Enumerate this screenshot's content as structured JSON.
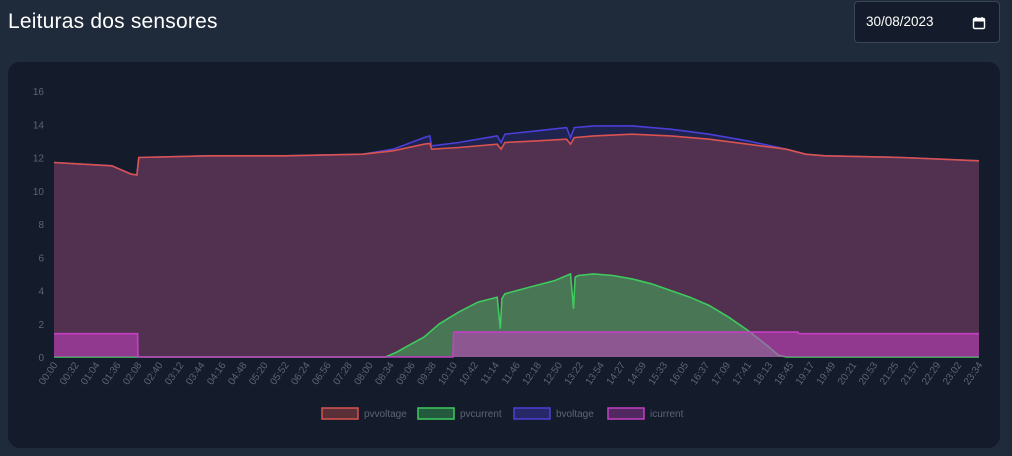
{
  "header": {
    "title": "Leituras dos sensores",
    "date_value": "30/08/2023"
  },
  "colors": {
    "pvvoltage": "#d9534f",
    "pvcurrent": "#3ecb5e",
    "bvoltage": "#4b3fd8",
    "icurrent": "#c43fc4"
  },
  "chart_data": {
    "type": "area",
    "ylim": [
      0,
      16
    ],
    "yticks": [
      0,
      2,
      4,
      6,
      8,
      10,
      12,
      14,
      16
    ],
    "grid": false,
    "legend_position": "bottom",
    "x_categories": [
      "00:00",
      "00:32",
      "01:04",
      "01:36",
      "02:08",
      "02:40",
      "03:12",
      "03:44",
      "04:16",
      "04:48",
      "05:20",
      "05:52",
      "06:24",
      "06:56",
      "07:28",
      "08:00",
      "08:34",
      "09:06",
      "09:38",
      "10:10",
      "10:42",
      "11:14",
      "11:46",
      "12:18",
      "12:50",
      "13:22",
      "13:54",
      "14:27",
      "14:59",
      "15:33",
      "16:05",
      "16:37",
      "17:09",
      "17:41",
      "18:13",
      "18:45",
      "19:17",
      "19:49",
      "20:21",
      "20:53",
      "21:25",
      "21:57",
      "22:29",
      "23:02",
      "23:34"
    ],
    "x_range_hours": [
      0,
      24
    ],
    "series": [
      {
        "name": "pvvoltage",
        "x_hours": [
          0,
          1.5,
          2.0,
          2.15,
          2.2,
          4,
          6,
          8,
          8.8,
          9.6,
          9.75,
          9.8,
          10.5,
          11.5,
          11.6,
          11.7,
          12.5,
          13.3,
          13.4,
          13.5,
          14,
          15,
          16,
          17,
          18,
          19,
          19.5,
          20,
          22,
          24
        ],
        "values": [
          11.7,
          11.5,
          11.0,
          10.95,
          12.0,
          12.1,
          12.1,
          12.2,
          12.4,
          12.8,
          12.85,
          12.5,
          12.6,
          12.8,
          12.5,
          12.9,
          13.0,
          13.1,
          12.8,
          13.2,
          13.3,
          13.4,
          13.3,
          13.1,
          12.8,
          12.5,
          12.2,
          12.1,
          12.0,
          11.8
        ]
      },
      {
        "name": "pvcurrent",
        "x_hours": [
          0,
          8.6,
          8.9,
          9.2,
          9.6,
          10.0,
          10.5,
          11.0,
          11.5,
          11.58,
          11.62,
          11.7,
          12.5,
          13.0,
          13.4,
          13.48,
          13.52,
          13.6,
          14.0,
          14.5,
          15.0,
          15.5,
          16.0,
          16.5,
          17.0,
          17.5,
          18.0,
          18.5,
          18.8,
          19.0,
          24
        ],
        "values": [
          0,
          0,
          0.3,
          0.7,
          1.2,
          2.0,
          2.7,
          3.3,
          3.6,
          1.7,
          3.5,
          3.8,
          4.3,
          4.6,
          5.0,
          2.9,
          4.8,
          4.9,
          5.0,
          4.9,
          4.7,
          4.4,
          4.0,
          3.6,
          3.1,
          2.4,
          1.6,
          0.7,
          0.1,
          0,
          0
        ]
      },
      {
        "name": "bvoltage",
        "x_hours": [
          0,
          1.5,
          2.0,
          2.15,
          2.2,
          4,
          6,
          8,
          8.8,
          9.6,
          9.75,
          9.8,
          10.5,
          11.5,
          11.6,
          11.7,
          12.5,
          13.3,
          13.4,
          13.5,
          14,
          15,
          16,
          17,
          18,
          19,
          19.5,
          20,
          22,
          24
        ],
        "values": [
          11.7,
          11.5,
          11.0,
          10.95,
          12.0,
          12.1,
          12.1,
          12.2,
          12.5,
          13.2,
          13.3,
          12.7,
          12.9,
          13.3,
          12.9,
          13.4,
          13.6,
          13.8,
          13.2,
          13.8,
          13.9,
          13.9,
          13.7,
          13.4,
          13.0,
          12.5,
          12.2,
          12.1,
          12.0,
          11.8
        ]
      },
      {
        "name": "icurrent",
        "x_hours": [
          0,
          2.17,
          2.18,
          10.35,
          10.37,
          19.3,
          19.32,
          24
        ],
        "values": [
          1.4,
          1.4,
          0,
          0,
          1.5,
          1.5,
          1.4,
          1.4
        ]
      }
    ]
  }
}
